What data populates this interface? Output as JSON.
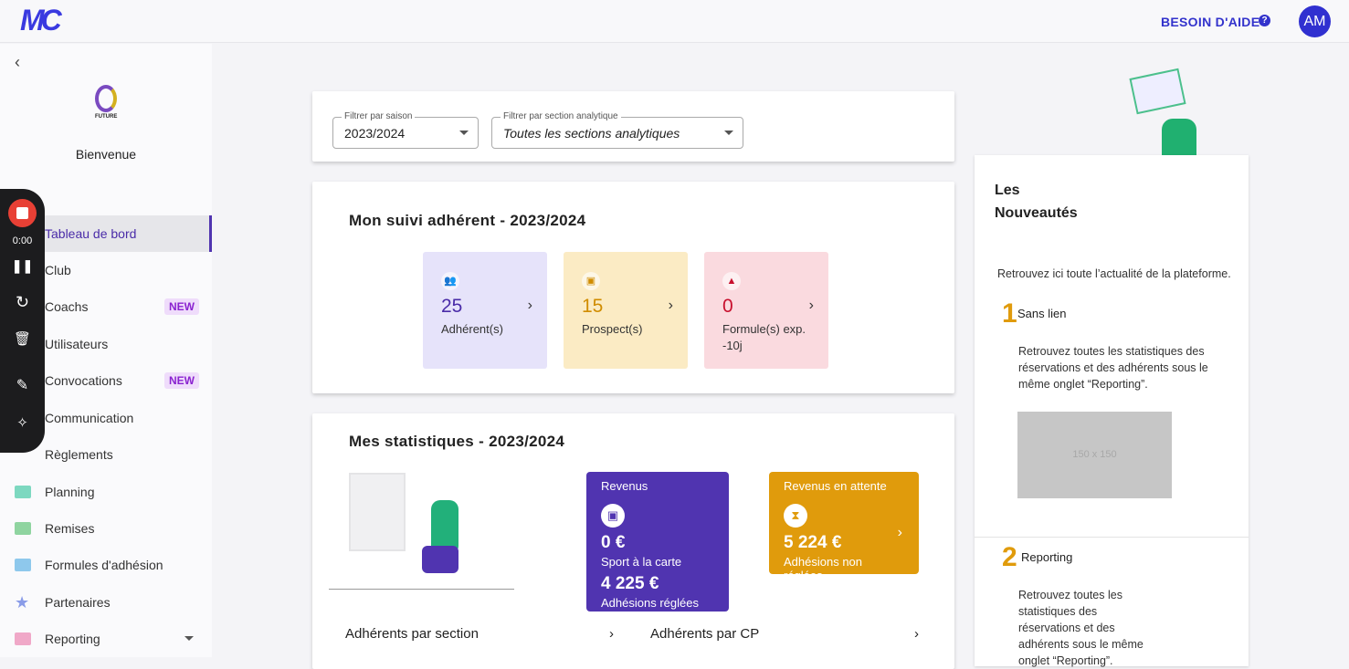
{
  "header": {
    "logo": "MC",
    "help": "BESOIN D'AIDE",
    "help_icon": "?",
    "avatar": "AM"
  },
  "sidebar": {
    "back": "‹",
    "club_name": "FUTURE",
    "welcome": "Bienvenue",
    "items": [
      {
        "label": "Tableau de bord"
      },
      {
        "label": "Club"
      },
      {
        "label": "Coachs",
        "badge": "NEW"
      },
      {
        "label": "Utilisateurs"
      },
      {
        "label": "Convocations",
        "badge": "NEW"
      },
      {
        "label": "Communication"
      },
      {
        "label": "Règlements"
      },
      {
        "label": "Planning"
      },
      {
        "label": "Remises"
      },
      {
        "label": "Formules d'adhésion"
      },
      {
        "label": "Partenaires"
      },
      {
        "label": "Reporting"
      }
    ]
  },
  "recorder": {
    "time": "0:00"
  },
  "filters": {
    "season_label": "Filtrer par saison",
    "season_value": "2023/2024",
    "section_label": "Filtrer par section analytique",
    "section_value": "Toutes les sections analytiques"
  },
  "suivi": {
    "title": "Mon suivi adhérent - 2023/2024",
    "tiles": [
      {
        "value": "25",
        "label": "Adhérent(s)"
      },
      {
        "value": "15",
        "label": "Prospect(s)"
      },
      {
        "value": "0",
        "label": "Formule(s) exp. -10j"
      }
    ]
  },
  "stats": {
    "title": "Mes statistiques - 2023/2024",
    "revenus": {
      "title": "Revenus",
      "v1": "0 €",
      "l1": "Sport à la carte",
      "v2": "4 225 €",
      "l2": "Adhésions réglées"
    },
    "attente": {
      "title": "Revenus en attente",
      "v1": "5 224 €",
      "l1": "Adhésions non réglées"
    },
    "link1": "Adhérents par section",
    "link2": "Adhérents par CP"
  },
  "news": {
    "title1": "Les",
    "title2": "Nouveautés",
    "intro": "Retrouvez ici toute l’actualité de la plateforme.",
    "items": [
      {
        "num": "1",
        "title": "Sans lien",
        "text": "Retrouvez toutes les statistiques des réservations et des adhérents sous le même onglet “Reporting”.",
        "image": "150 x 150"
      },
      {
        "num": "2",
        "title": "Reporting",
        "text": "Retrouvez toutes les statistiques des réservations et des adhérents sous le même onglet “Reporting”."
      }
    ]
  },
  "colors": {
    "accent": "#5034b0",
    "orange": "#e09b0c",
    "brand": "#3a3ae0"
  }
}
